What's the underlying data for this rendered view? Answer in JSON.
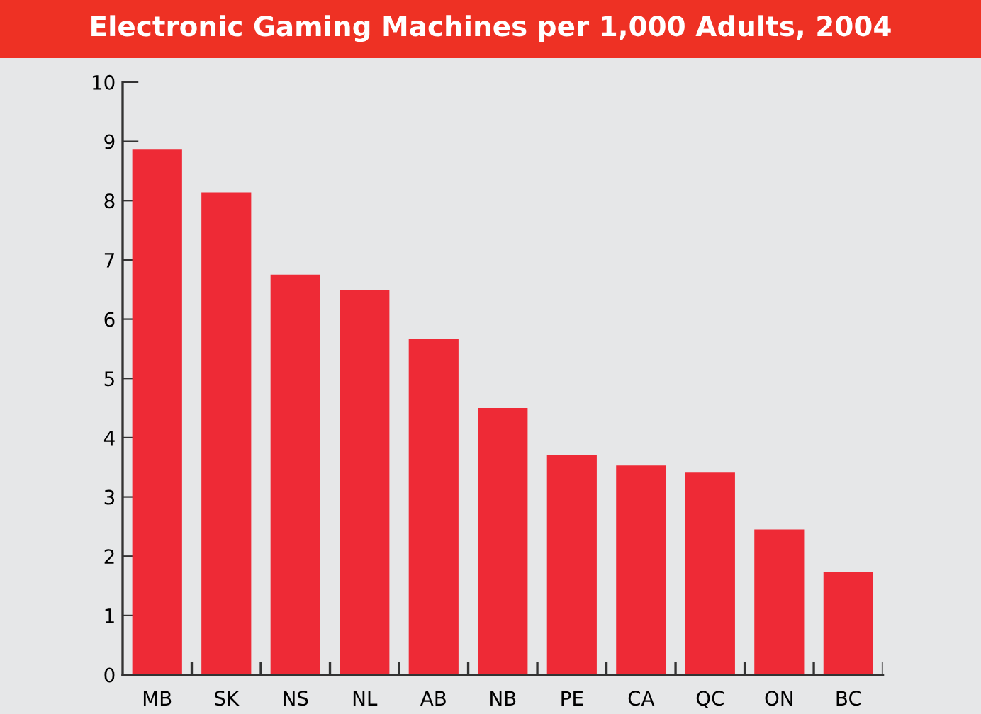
{
  "chart_data": {
    "type": "bar",
    "title": "Electronic Gaming Machines per 1,000 Adults, 2004",
    "categories": [
      "MB",
      "SK",
      "NS",
      "NL",
      "AB",
      "NB",
      "PE",
      "CA",
      "QC",
      "ON",
      "BC"
    ],
    "values": [
      8.86,
      8.14,
      6.75,
      6.49,
      5.67,
      4.5,
      3.7,
      3.53,
      3.41,
      2.45,
      1.73
    ],
    "color": "#ee2a36",
    "ylim": [
      0,
      10
    ],
    "yticks": [
      0,
      1,
      2,
      3,
      4,
      5,
      6,
      7,
      8,
      9,
      10
    ],
    "grid": false
  }
}
